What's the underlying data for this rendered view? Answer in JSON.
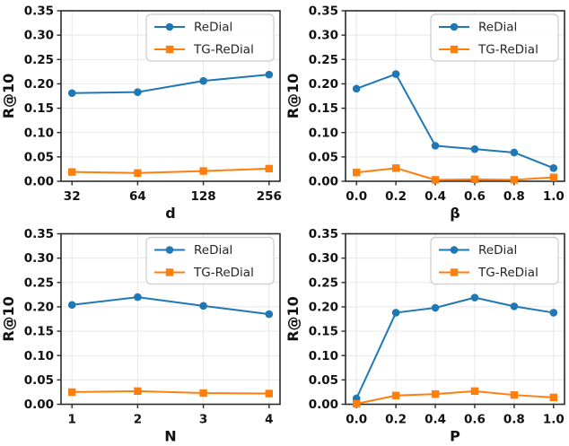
{
  "figure": {
    "background": "#ffffff",
    "rows": 2,
    "cols": 2
  },
  "colors": {
    "redial": "#1f77b4",
    "tg_redial": "#ff7f0e",
    "grid_line": "#e7e7e7",
    "spine": "#2b2b2b",
    "tick_label": "#111111",
    "legend_border": "#cccccc",
    "legend_text": "#262626"
  },
  "chart_data": [
    {
      "type": "line",
      "title": "",
      "xlabel": "d",
      "ylabel": "R@10",
      "categories": [
        "32",
        "64",
        "128",
        "256"
      ],
      "ylim": [
        0,
        0.35
      ],
      "yticks": [
        "0.00",
        "0.05",
        "0.10",
        "0.15",
        "0.20",
        "0.25",
        "0.30",
        "0.35"
      ],
      "grid": true,
      "legend_position": "upper right",
      "series": [
        {
          "name": "ReDial",
          "color": "#1f77b4",
          "marker": "circle",
          "values": [
            0.181,
            0.183,
            0.206,
            0.219
          ]
        },
        {
          "name": "TG-ReDial",
          "color": "#ff7f0e",
          "marker": "square",
          "values": [
            0.019,
            0.017,
            0.021,
            0.026
          ]
        }
      ]
    },
    {
      "type": "line",
      "title": "",
      "xlabel": "β",
      "ylabel": "R@10",
      "categories": [
        "0.0",
        "0.2",
        "0.4",
        "0.6",
        "0.8",
        "1.0"
      ],
      "ylim": [
        0,
        0.35
      ],
      "yticks": [
        "0.00",
        "0.05",
        "0.10",
        "0.15",
        "0.20",
        "0.25",
        "0.30",
        "0.35"
      ],
      "grid": true,
      "legend_position": "upper right",
      "series": [
        {
          "name": "ReDial",
          "color": "#1f77b4",
          "marker": "circle",
          "values": [
            0.19,
            0.22,
            0.073,
            0.066,
            0.059,
            0.027
          ]
        },
        {
          "name": "TG-ReDial",
          "color": "#ff7f0e",
          "marker": "square",
          "values": [
            0.018,
            0.027,
            0.003,
            0.004,
            0.003,
            0.008
          ]
        }
      ]
    },
    {
      "type": "line",
      "title": "",
      "xlabel": "N",
      "ylabel": "R@10",
      "categories": [
        "1",
        "2",
        "3",
        "4"
      ],
      "ylim": [
        0,
        0.35
      ],
      "yticks": [
        "0.00",
        "0.05",
        "0.10",
        "0.15",
        "0.20",
        "0.25",
        "0.30",
        "0.35"
      ],
      "grid": true,
      "legend_position": "upper right",
      "series": [
        {
          "name": "ReDial",
          "color": "#1f77b4",
          "marker": "circle",
          "values": [
            0.204,
            0.22,
            0.202,
            0.185
          ]
        },
        {
          "name": "TG-ReDial",
          "color": "#ff7f0e",
          "marker": "square",
          "values": [
            0.025,
            0.027,
            0.023,
            0.022
          ]
        }
      ]
    },
    {
      "type": "line",
      "title": "",
      "xlabel": "P",
      "ylabel": "R@10",
      "categories": [
        "0.0",
        "0.2",
        "0.4",
        "0.6",
        "0.8",
        "1.0"
      ],
      "ylim": [
        0,
        0.35
      ],
      "yticks": [
        "0.00",
        "0.05",
        "0.10",
        "0.15",
        "0.20",
        "0.25",
        "0.30",
        "0.35"
      ],
      "grid": true,
      "legend_position": "upper right",
      "series": [
        {
          "name": "ReDial",
          "color": "#1f77b4",
          "marker": "circle",
          "values": [
            0.012,
            0.188,
            0.198,
            0.219,
            0.201,
            0.188
          ]
        },
        {
          "name": "TG-ReDial",
          "color": "#ff7f0e",
          "marker": "square",
          "values": [
            0.001,
            0.018,
            0.021,
            0.027,
            0.019,
            0.014
          ]
        }
      ]
    }
  ]
}
